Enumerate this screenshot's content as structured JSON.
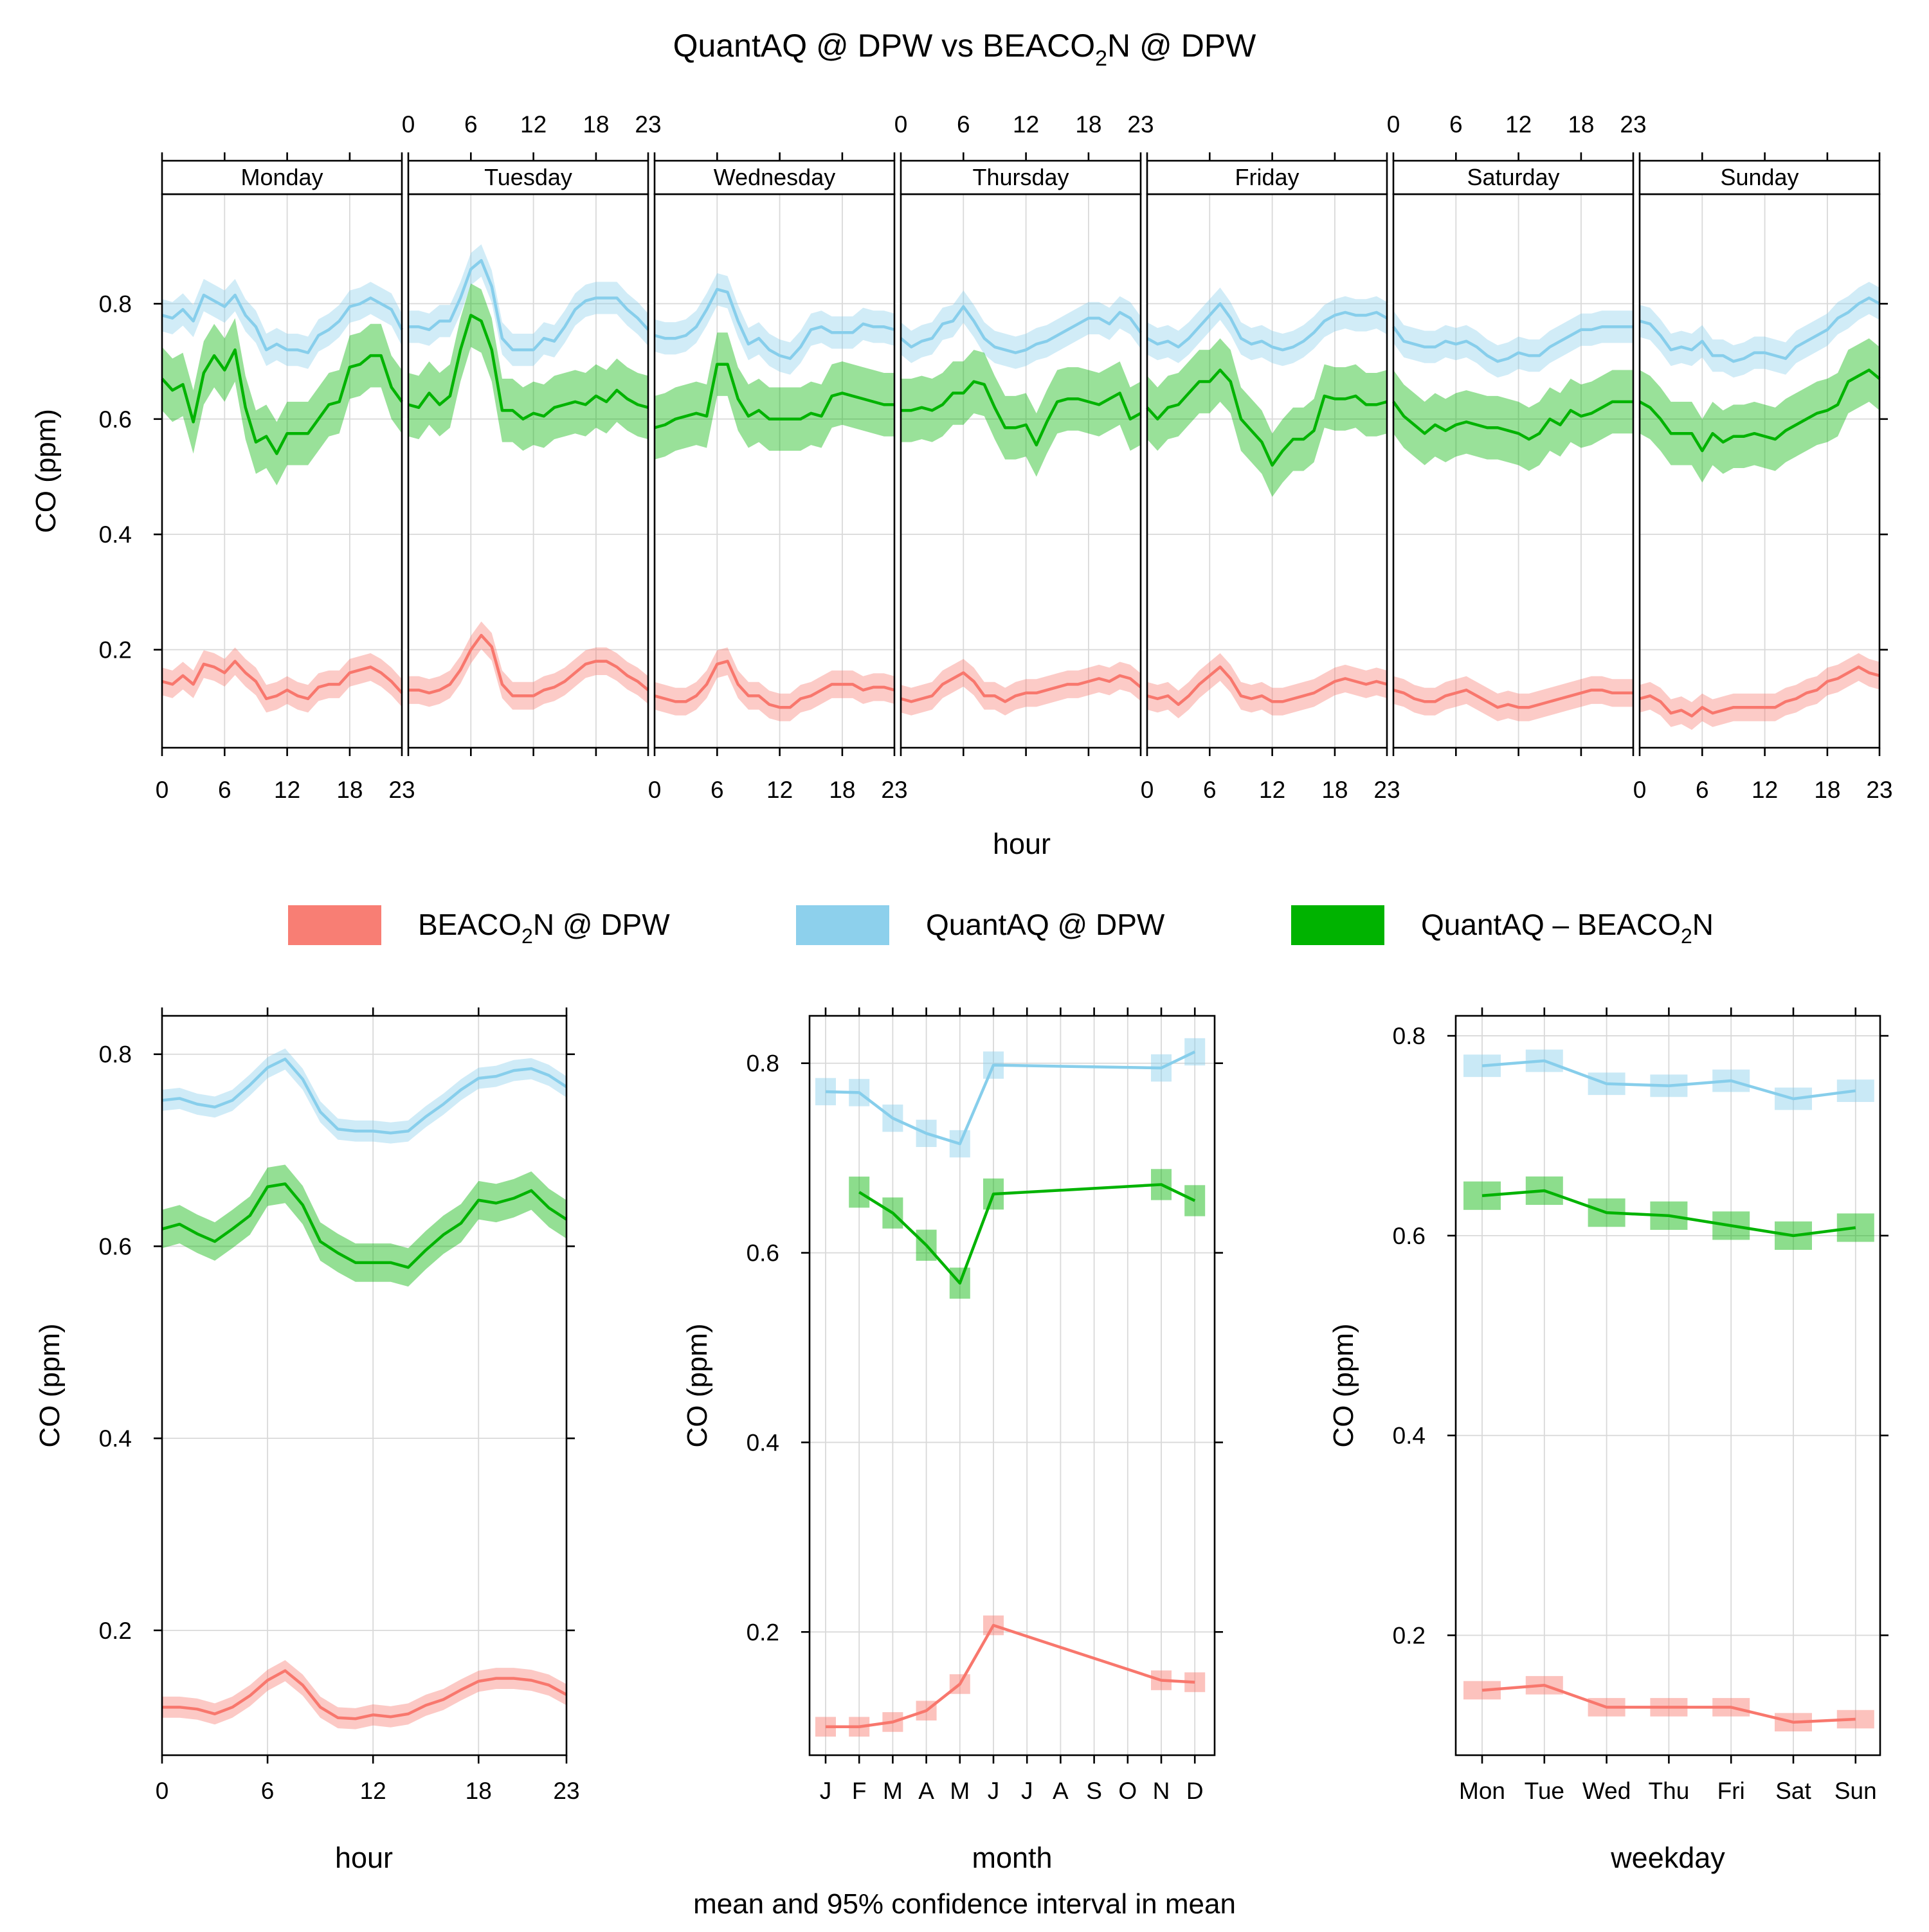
{
  "title_main": "QuantAQ @ DPW vs BEACO",
  "title_sub": "2",
  "title_end": "N @ DPW",
  "footer": "mean and 95% confidence interval in mean",
  "axis_labels": {
    "y": "CO (ppm)",
    "hour": "hour",
    "month": "month",
    "weekday": "weekday"
  },
  "colors": {
    "beacon": "#F8776D",
    "quantaq": "#87CEEB",
    "diff": "#00B300"
  },
  "legend": [
    {
      "key": "beacon",
      "text_main": "BEACO",
      "text_sub": "2",
      "text_end": "N @ DPW"
    },
    {
      "key": "quantaq",
      "text_main": "QuantAQ @ DPW",
      "text_sub": "",
      "text_end": ""
    },
    {
      "key": "diff",
      "text_main": "QuantAQ – BEACO",
      "text_sub": "2",
      "text_end": "N"
    }
  ],
  "chart_data": [
    {
      "type": "line",
      "panel": "weekday-hour",
      "x_label": "hour",
      "y_label": "CO (ppm)",
      "ylim": [
        0.03,
        0.99
      ],
      "xlim": [
        0,
        23
      ],
      "x_ticks": [
        "0",
        "6",
        "12",
        "18",
        "23"
      ],
      "y_ticks": [
        "0.2",
        "0.4",
        "0.6",
        "0.8"
      ],
      "days": [
        "Monday",
        "Tuesday",
        "Wednesday",
        "Thursday",
        "Friday",
        "Saturday",
        "Sunday"
      ],
      "series": [
        {
          "name": "BEACO2N @ DPW",
          "key": "beacon",
          "ci": 0.024,
          "values": [
            [
              0.145,
              0.14,
              0.155,
              0.14,
              0.175,
              0.17,
              0.16,
              0.18,
              0.16,
              0.145,
              0.115,
              0.12,
              0.13,
              0.12,
              0.115,
              0.135,
              0.14,
              0.14,
              0.16,
              0.165,
              0.17,
              0.16,
              0.145,
              0.125
            ],
            [
              0.13,
              0.13,
              0.125,
              0.13,
              0.14,
              0.165,
              0.2,
              0.225,
              0.205,
              0.14,
              0.12,
              0.12,
              0.12,
              0.13,
              0.135,
              0.145,
              0.16,
              0.175,
              0.18,
              0.18,
              0.17,
              0.155,
              0.145,
              0.13
            ],
            [
              0.12,
              0.115,
              0.11,
              0.11,
              0.12,
              0.14,
              0.175,
              0.18,
              0.14,
              0.12,
              0.12,
              0.105,
              0.1,
              0.1,
              0.115,
              0.12,
              0.13,
              0.14,
              0.14,
              0.14,
              0.13,
              0.135,
              0.135,
              0.13
            ],
            [
              0.115,
              0.11,
              0.115,
              0.12,
              0.14,
              0.15,
              0.16,
              0.145,
              0.12,
              0.12,
              0.11,
              0.12,
              0.125,
              0.125,
              0.13,
              0.135,
              0.14,
              0.14,
              0.145,
              0.15,
              0.145,
              0.155,
              0.15,
              0.135
            ],
            [
              0.12,
              0.115,
              0.12,
              0.105,
              0.12,
              0.14,
              0.155,
              0.17,
              0.15,
              0.12,
              0.115,
              0.12,
              0.11,
              0.11,
              0.115,
              0.12,
              0.125,
              0.135,
              0.145,
              0.15,
              0.145,
              0.14,
              0.145,
              0.14
            ],
            [
              0.13,
              0.125,
              0.115,
              0.11,
              0.11,
              0.12,
              0.125,
              0.13,
              0.12,
              0.11,
              0.1,
              0.105,
              0.1,
              0.1,
              0.105,
              0.11,
              0.115,
              0.12,
              0.125,
              0.13,
              0.13,
              0.125,
              0.125,
              0.125
            ],
            [
              0.115,
              0.12,
              0.11,
              0.09,
              0.095,
              0.085,
              0.1,
              0.09,
              0.095,
              0.1,
              0.1,
              0.1,
              0.1,
              0.1,
              0.11,
              0.115,
              0.125,
              0.13,
              0.145,
              0.15,
              0.16,
              0.17,
              0.16,
              0.155
            ]
          ]
        },
        {
          "name": "QuantAQ @ DPW",
          "key": "quantaq",
          "ci": 0.028,
          "values": [
            [
              0.78,
              0.775,
              0.79,
              0.77,
              0.815,
              0.805,
              0.795,
              0.815,
              0.78,
              0.76,
              0.72,
              0.73,
              0.72,
              0.72,
              0.715,
              0.745,
              0.755,
              0.77,
              0.795,
              0.8,
              0.81,
              0.8,
              0.79,
              0.755
            ],
            [
              0.76,
              0.76,
              0.755,
              0.77,
              0.77,
              0.81,
              0.86,
              0.875,
              0.83,
              0.74,
              0.72,
              0.72,
              0.72,
              0.74,
              0.735,
              0.76,
              0.79,
              0.805,
              0.81,
              0.81,
              0.81,
              0.79,
              0.775,
              0.755
            ],
            [
              0.745,
              0.74,
              0.74,
              0.745,
              0.76,
              0.79,
              0.825,
              0.82,
              0.77,
              0.73,
              0.74,
              0.72,
              0.71,
              0.705,
              0.725,
              0.755,
              0.76,
              0.75,
              0.75,
              0.75,
              0.765,
              0.76,
              0.76,
              0.755
            ],
            [
              0.74,
              0.725,
              0.735,
              0.74,
              0.765,
              0.77,
              0.795,
              0.77,
              0.74,
              0.725,
              0.72,
              0.715,
              0.72,
              0.73,
              0.735,
              0.745,
              0.755,
              0.765,
              0.775,
              0.775,
              0.765,
              0.785,
              0.775,
              0.75
            ],
            [
              0.74,
              0.73,
              0.735,
              0.725,
              0.74,
              0.76,
              0.78,
              0.8,
              0.775,
              0.74,
              0.73,
              0.735,
              0.725,
              0.72,
              0.725,
              0.735,
              0.75,
              0.77,
              0.78,
              0.785,
              0.78,
              0.78,
              0.785,
              0.775
            ],
            [
              0.76,
              0.735,
              0.73,
              0.725,
              0.725,
              0.735,
              0.73,
              0.735,
              0.725,
              0.71,
              0.7,
              0.705,
              0.715,
              0.71,
              0.71,
              0.725,
              0.735,
              0.745,
              0.755,
              0.755,
              0.76,
              0.76,
              0.76,
              0.76
            ],
            [
              0.77,
              0.765,
              0.745,
              0.72,
              0.725,
              0.72,
              0.735,
              0.71,
              0.71,
              0.7,
              0.705,
              0.715,
              0.715,
              0.71,
              0.705,
              0.725,
              0.735,
              0.745,
              0.755,
              0.775,
              0.785,
              0.8,
              0.81,
              0.8
            ]
          ]
        },
        {
          "name": "QuantAQ – BEACO2N",
          "key": "diff",
          "ci": 0.055,
          "values": [
            [
              0.67,
              0.65,
              0.66,
              0.595,
              0.68,
              0.71,
              0.685,
              0.72,
              0.62,
              0.56,
              0.57,
              0.54,
              0.575,
              0.575,
              0.575,
              0.6,
              0.625,
              0.63,
              0.69,
              0.695,
              0.71,
              0.71,
              0.655,
              0.63
            ],
            [
              0.625,
              0.62,
              0.645,
              0.625,
              0.64,
              0.72,
              0.78,
              0.77,
              0.72,
              0.615,
              0.615,
              0.6,
              0.61,
              0.605,
              0.62,
              0.625,
              0.63,
              0.625,
              0.64,
              0.63,
              0.65,
              0.635,
              0.625,
              0.62
            ],
            [
              0.585,
              0.59,
              0.6,
              0.605,
              0.61,
              0.605,
              0.695,
              0.695,
              0.635,
              0.605,
              0.615,
              0.6,
              0.6,
              0.6,
              0.6,
              0.61,
              0.605,
              0.64,
              0.645,
              0.64,
              0.635,
              0.63,
              0.625,
              0.625
            ],
            [
              0.615,
              0.615,
              0.62,
              0.615,
              0.625,
              0.645,
              0.645,
              0.665,
              0.66,
              0.62,
              0.585,
              0.585,
              0.59,
              0.555,
              0.595,
              0.63,
              0.635,
              0.635,
              0.63,
              0.625,
              0.635,
              0.645,
              0.6,
              0.61
            ],
            [
              0.62,
              0.6,
              0.62,
              0.625,
              0.645,
              0.665,
              0.665,
              0.685,
              0.665,
              0.6,
              0.58,
              0.56,
              0.52,
              0.545,
              0.565,
              0.565,
              0.58,
              0.64,
              0.635,
              0.635,
              0.64,
              0.625,
              0.625,
              0.63
            ],
            [
              0.63,
              0.605,
              0.59,
              0.575,
              0.59,
              0.58,
              0.59,
              0.595,
              0.59,
              0.585,
              0.585,
              0.58,
              0.575,
              0.565,
              0.575,
              0.6,
              0.59,
              0.615,
              0.605,
              0.61,
              0.62,
              0.63,
              0.63,
              0.63
            ],
            [
              0.63,
              0.62,
              0.6,
              0.575,
              0.575,
              0.575,
              0.545,
              0.575,
              0.56,
              0.57,
              0.57,
              0.575,
              0.57,
              0.565,
              0.58,
              0.59,
              0.6,
              0.61,
              0.615,
              0.625,
              0.665,
              0.675,
              0.685,
              0.67
            ]
          ]
        }
      ]
    },
    {
      "type": "line",
      "panel": "hour",
      "x_label": "hour",
      "y_label": "CO (ppm)",
      "ylim": [
        0.07,
        0.84
      ],
      "xlim": [
        0,
        23
      ],
      "x_ticks": [
        "0",
        "6",
        "12",
        "18",
        "23"
      ],
      "y_ticks": [
        "0.2",
        "0.4",
        "0.6",
        "0.8"
      ],
      "series": [
        {
          "name": "BEACO2N @ DPW",
          "key": "beacon",
          "ci": 0.011,
          "values": [
            0.12,
            0.12,
            0.118,
            0.113,
            0.12,
            0.132,
            0.148,
            0.158,
            0.143,
            0.12,
            0.109,
            0.108,
            0.112,
            0.11,
            0.113,
            0.122,
            0.128,
            0.138,
            0.147,
            0.15,
            0.15,
            0.148,
            0.143,
            0.133
          ]
        },
        {
          "name": "QuantAQ @ DPW",
          "key": "quantaq",
          "ci": 0.011,
          "values": [
            0.752,
            0.754,
            0.748,
            0.745,
            0.752,
            0.768,
            0.786,
            0.795,
            0.774,
            0.74,
            0.722,
            0.72,
            0.72,
            0.718,
            0.72,
            0.735,
            0.748,
            0.763,
            0.775,
            0.777,
            0.783,
            0.785,
            0.778,
            0.766
          ]
        },
        {
          "name": "QuantAQ – BEACO2N",
          "key": "diff",
          "ci": 0.02,
          "values": [
            0.618,
            0.623,
            0.613,
            0.605,
            0.618,
            0.632,
            0.662,
            0.665,
            0.643,
            0.605,
            0.593,
            0.583,
            0.583,
            0.583,
            0.578,
            0.596,
            0.612,
            0.624,
            0.648,
            0.645,
            0.65,
            0.658,
            0.64,
            0.628
          ]
        }
      ]
    },
    {
      "type": "line",
      "panel": "month",
      "x_label": "month",
      "y_label": "CO (ppm)",
      "ylim": [
        0.07,
        0.85
      ],
      "categories": [
        "J",
        "F",
        "M",
        "A",
        "M",
        "J",
        "J",
        "A",
        "S",
        "O",
        "N",
        "D"
      ],
      "y_ticks": [
        "0.2",
        "0.4",
        "0.6",
        "0.8"
      ],
      "series": [
        {
          "name": "BEACO2N @ DPW",
          "key": "beacon",
          "ci": 0.007,
          "values": [
            0.1,
            0.1,
            0.105,
            0.117,
            0.145,
            0.207,
            null,
            null,
            null,
            null,
            0.149,
            0.147
          ]
        },
        {
          "name": "QuantAQ @ DPW",
          "key": "quantaq",
          "ci": 0.011,
          "values": [
            0.77,
            0.769,
            0.742,
            0.726,
            0.715,
            0.798,
            null,
            null,
            null,
            null,
            0.795,
            0.812
          ]
        },
        {
          "name": "QuantAQ – BEACO2N",
          "key": "diff",
          "ci": 0.013,
          "values": [
            null,
            0.664,
            0.642,
            0.608,
            0.568,
            0.662,
            null,
            null,
            null,
            null,
            0.672,
            0.655
          ]
        }
      ]
    },
    {
      "type": "line",
      "panel": "weekday",
      "x_label": "weekday",
      "y_label": "CO (ppm)",
      "ylim": [
        0.08,
        0.82
      ],
      "categories": [
        "Mon",
        "Tue",
        "Wed",
        "Thu",
        "Fri",
        "Sat",
        "Sun"
      ],
      "y_ticks": [
        "0.2",
        "0.4",
        "0.6",
        "0.8"
      ],
      "series": [
        {
          "name": "BEACO2N @ DPW",
          "key": "beacon",
          "ci": 0.006,
          "values": [
            0.145,
            0.15,
            0.128,
            0.128,
            0.128,
            0.113,
            0.116
          ]
        },
        {
          "name": "QuantAQ @ DPW",
          "key": "quantaq",
          "ci": 0.008,
          "values": [
            0.77,
            0.775,
            0.752,
            0.75,
            0.755,
            0.737,
            0.745
          ]
        },
        {
          "name": "QuantAQ – BEACO2N",
          "key": "diff",
          "ci": 0.011,
          "values": [
            0.64,
            0.645,
            0.623,
            0.62,
            0.61,
            0.6,
            0.608
          ]
        }
      ]
    }
  ]
}
